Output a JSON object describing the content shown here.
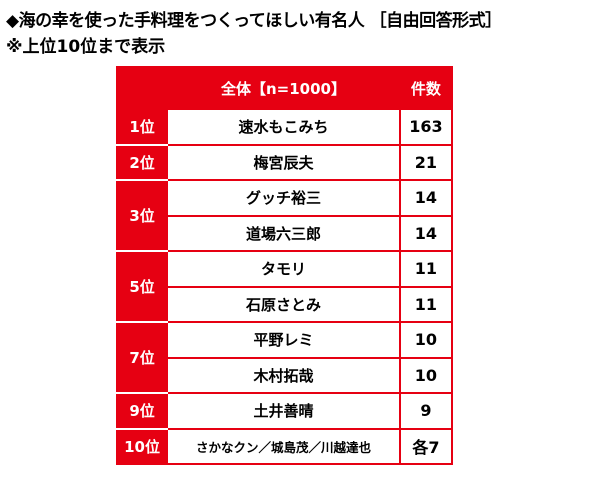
{
  "title": "◆海の幸を使った手料理をつくってほしい有名人 ［自由回答形式］",
  "subtitle": "※上位10位まで表示",
  "table": {
    "headers": [
      "",
      "全体【n=1000】",
      "件数"
    ],
    "rows": [
      {
        "rank": "1位",
        "name": "速水もこみち",
        "count": "163"
      },
      {
        "rank": "2位",
        "name": "梅宮辰夫",
        "count": "21"
      },
      {
        "rank": "3位",
        "name": "グッチ裕三",
        "count": "14"
      },
      {
        "rank": "",
        "name": "道場六三郎",
        "count": "14"
      },
      {
        "rank": "5位",
        "name": "タモリ",
        "count": "11"
      },
      {
        "rank": "",
        "name": "石原さとみ",
        "count": "11"
      },
      {
        "rank": "7位",
        "name": "平野レミ",
        "count": "10"
      },
      {
        "rank": "",
        "name": "木村拓哉",
        "count": "10"
      },
      {
        "rank": "9位",
        "name": "土井善晴",
        "count": "9"
      },
      {
        "rank": "10位",
        "name": "さかなクン／城島茂／川越達也",
        "count": "各7"
      }
    ]
  },
  "colors": {
    "accent": "#e60012"
  }
}
